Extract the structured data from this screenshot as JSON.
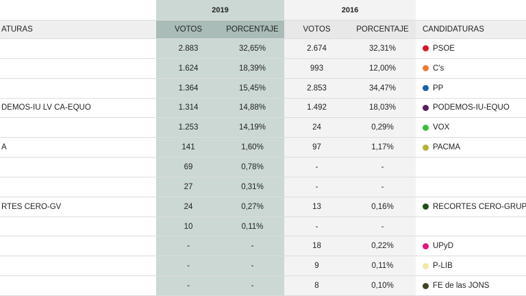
{
  "table": {
    "years": [
      "2019",
      "2016"
    ],
    "header": {
      "left": "ATURAS",
      "votes2019": "VOTOS",
      "pct2019": "PORCENTAJE",
      "votes2016": "VOTOS",
      "pct2016": "PORCENTAJE",
      "party": "CANDIDATURAS"
    },
    "rows": [
      {
        "left": null,
        "votes2019": "2.883",
        "pct2019": "32,65%",
        "votes2016": "2.674",
        "pct2016": "32,31%",
        "party": "PSOE",
        "color": "#d7142a"
      },
      {
        "left": null,
        "votes2019": "1.624",
        "pct2019": "18,39%",
        "votes2016": "993",
        "pct2016": "12,00%",
        "party": "C's",
        "color": "#f07a32"
      },
      {
        "left": null,
        "votes2019": "1.364",
        "pct2019": "15,45%",
        "votes2016": "2.853",
        "pct2016": "34,47%",
        "party": "PP",
        "color": "#1d5fae"
      },
      {
        "left": "DEMOS-IU LV CA-EQUO",
        "votes2019": "1.314",
        "pct2019": "14,88%",
        "votes2016": "1.492",
        "pct2016": "18,03%",
        "party": "PODEMOS-IU-EQUO",
        "color": "#5c1e5b"
      },
      {
        "left": null,
        "votes2019": "1.253",
        "pct2019": "14,19%",
        "votes2016": "24",
        "pct2016": "0,29%",
        "party": "VOX",
        "color": "#3dbb3b"
      },
      {
        "left": "A",
        "votes2019": "141",
        "pct2019": "1,60%",
        "votes2016": "97",
        "pct2016": "1,17%",
        "party": "PACMA",
        "color": "#b4b232"
      },
      {
        "left": null,
        "votes2019": "69",
        "pct2019": "0,78%",
        "votes2016": "-",
        "pct2016": "-",
        "party": null,
        "color": null
      },
      {
        "left": null,
        "votes2019": "27",
        "pct2019": "0,31%",
        "votes2016": "-",
        "pct2016": "-",
        "party": null,
        "color": null
      },
      {
        "left": "RTES CERO-GV",
        "votes2019": "24",
        "pct2019": "0,27%",
        "votes2016": "13",
        "pct2016": "0,16%",
        "party": "RECORTES CERO-GRUPO",
        "color": "#1f4d1a"
      },
      {
        "left": null,
        "votes2019": "10",
        "pct2019": "0,11%",
        "votes2016": "-",
        "pct2016": "-",
        "party": null,
        "color": null
      },
      {
        "left": null,
        "votes2019": "-",
        "pct2019": "-",
        "votes2016": "18",
        "pct2016": "0,22%",
        "party": "UPyD",
        "color": "#e0157c"
      },
      {
        "left": null,
        "votes2019": "-",
        "pct2019": "-",
        "votes2016": "9",
        "pct2016": "0,11%",
        "party": "P-LIB",
        "color": "#f3e7a8"
      },
      {
        "left": null,
        "votes2019": "-",
        "pct2019": "-",
        "votes2016": "8",
        "pct2016": "0,10%",
        "party": "FE de las JONS",
        "color": "#3f4420"
      }
    ]
  }
}
